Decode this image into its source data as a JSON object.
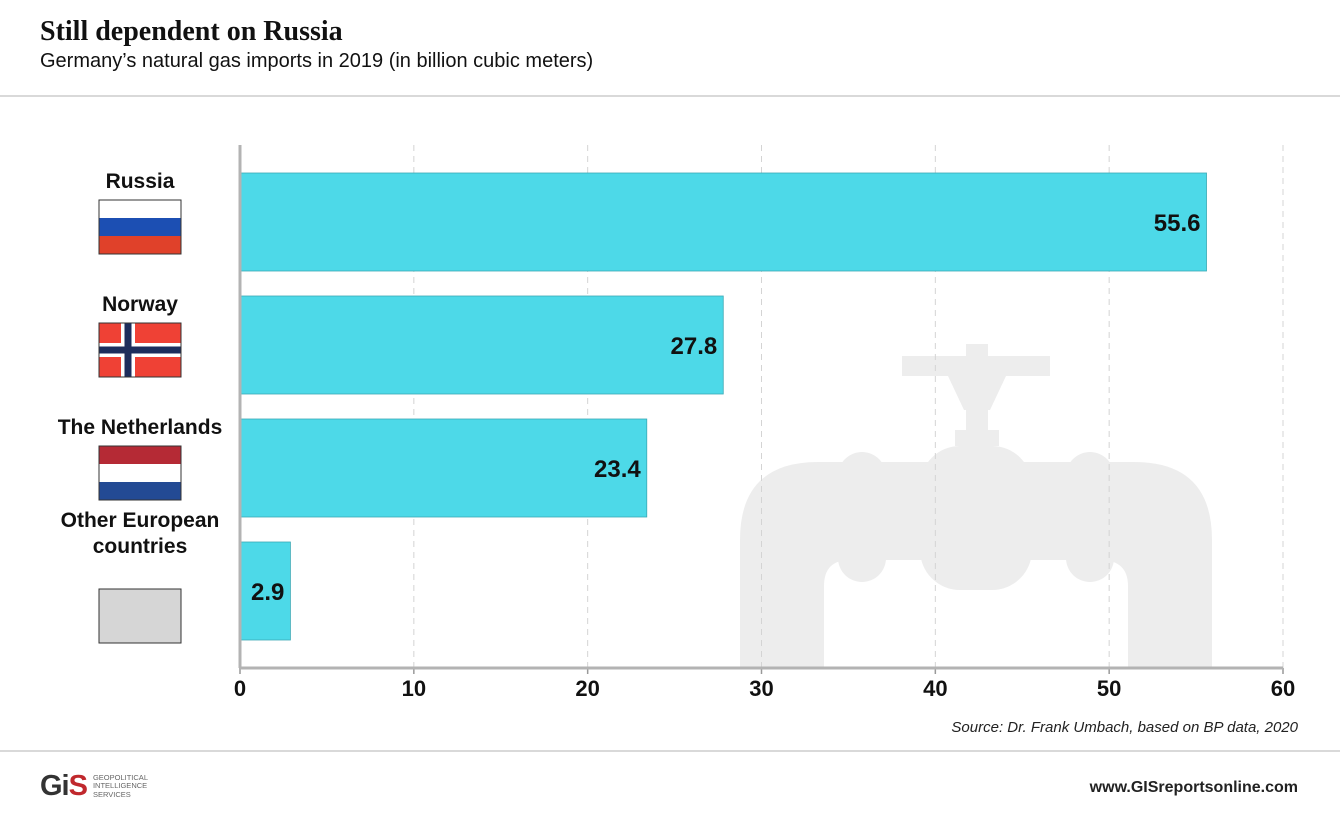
{
  "header": {
    "title": "Still dependent on Russia",
    "subtitle": "Germany’s natural gas imports in 2019 (in billion cubic meters)"
  },
  "chart_data": {
    "type": "bar",
    "orientation": "horizontal",
    "categories": [
      "Russia",
      "Norway",
      "The Netherlands",
      "Other European countries"
    ],
    "category_lines": [
      [
        "Russia"
      ],
      [
        "Norway"
      ],
      [
        "The Netherlands"
      ],
      [
        "Other European",
        "countries"
      ]
    ],
    "values": [
      55.6,
      27.8,
      23.4,
      2.9
    ],
    "value_labels": [
      "55.6",
      "27.8",
      "23.4",
      "2.9"
    ],
    "xlim": [
      0,
      60
    ],
    "xticks": [
      0,
      10,
      20,
      30,
      40,
      50,
      60
    ],
    "grid": true,
    "bar_color": "#4dd9e8",
    "flags": [
      "russia-flag-icon",
      "norway-flag-icon",
      "netherlands-flag-icon",
      "blank-flag-icon"
    ]
  },
  "colors": {
    "russia": [
      "#ffffff",
      "#1c4fb3",
      "#e0412a"
    ],
    "norway": {
      "red": "#ef4135",
      "white": "#ffffff",
      "blue": "#1d2d5c"
    },
    "netherlands": [
      "#b52a35",
      "#ffffff",
      "#234a94"
    ],
    "other": "#d6d6d6",
    "watermark": "#ededed"
  },
  "footer": {
    "source": "Source: Dr. Frank Umbach, based on BP data, 2020",
    "website": "www.GISreportsonline.com",
    "logo_mark_gi": "Gi",
    "logo_mark_s": "S",
    "logo_line1": "Geopolitical",
    "logo_line2": "Intelligence",
    "logo_line3": "Services"
  }
}
